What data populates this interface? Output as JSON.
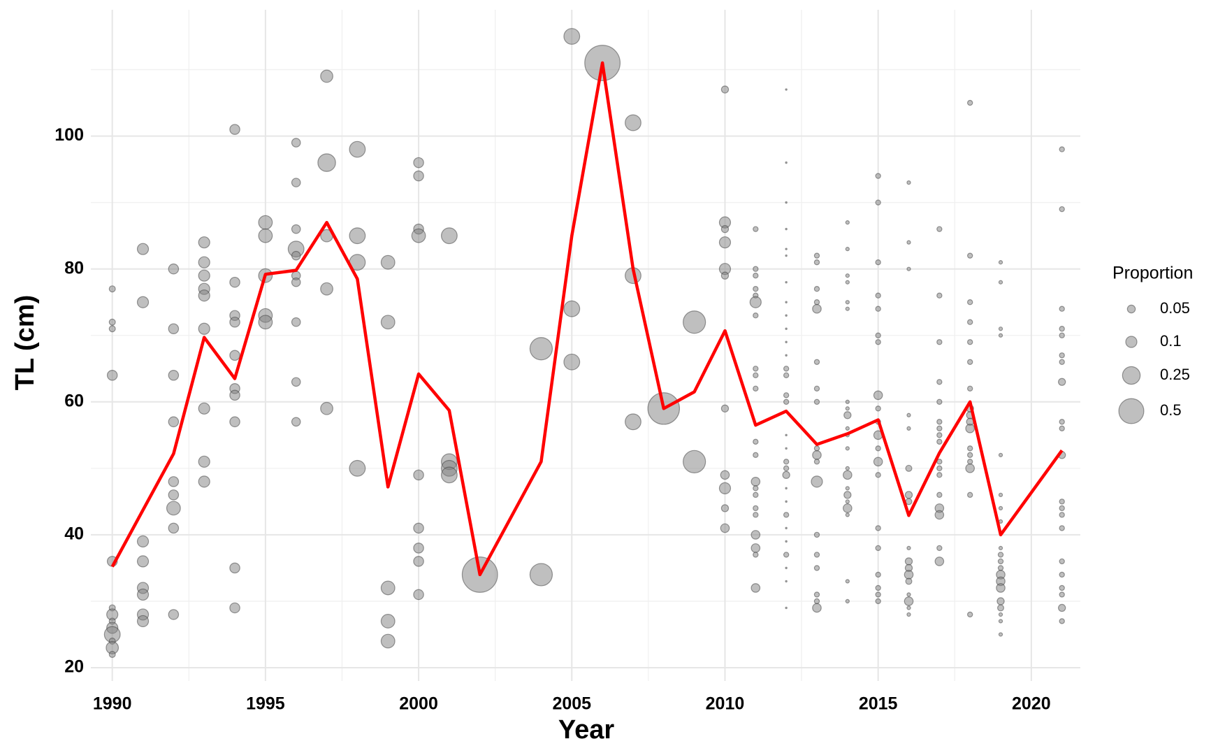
{
  "chart_data": {
    "type": "scatter",
    "x_label": "Year",
    "y_label": "TL (cm)",
    "xlim": [
      1989.3,
      2021.6
    ],
    "ylim": [
      18,
      119
    ],
    "xticks": [
      1990,
      1995,
      2000,
      2005,
      2010,
      2015,
      2020
    ],
    "yticks": [
      20,
      40,
      60,
      80,
      100
    ],
    "xminor": [
      1992.5,
      1997.5,
      2002.5,
      2007.5,
      2012.5,
      2017.5
    ],
    "yminor": [
      30,
      50,
      70,
      90,
      110
    ],
    "grid": true,
    "point_color": "#808080",
    "size_legend": {
      "title": "Proportion",
      "values": [
        0.05,
        0.1,
        0.25,
        0.5
      ]
    },
    "groups": [
      {
        "year": 1990,
        "y": [
          77,
          72,
          71,
          64,
          36,
          29,
          28,
          27,
          26,
          25,
          24,
          23,
          22
        ],
        "size": [
          0.03,
          0.03,
          0.03,
          0.08,
          0.08,
          0.03,
          0.1,
          0.03,
          0.1,
          0.2,
          0.03,
          0.12,
          0.03
        ]
      },
      {
        "year": 1991,
        "y": [
          83,
          75,
          39,
          36,
          32,
          31,
          28,
          27
        ],
        "size": [
          0.1,
          0.1,
          0.1,
          0.1,
          0.1,
          0.1,
          0.1,
          0.1
        ]
      },
      {
        "year": 1992,
        "y": [
          80,
          71,
          64,
          57,
          48,
          46,
          44,
          41,
          28
        ],
        "size": [
          0.08,
          0.08,
          0.08,
          0.08,
          0.08,
          0.08,
          0.15,
          0.08,
          0.08
        ]
      },
      {
        "year": 1993,
        "y": [
          84,
          81,
          79,
          77,
          76,
          71,
          59,
          51,
          48
        ],
        "size": [
          0.1,
          0.1,
          0.1,
          0.1,
          0.1,
          0.1,
          0.1,
          0.1,
          0.1
        ]
      },
      {
        "year": 1994,
        "y": [
          101,
          78,
          73,
          72,
          67,
          62,
          61,
          57,
          35,
          29
        ],
        "size": [
          0.08,
          0.08,
          0.08,
          0.08,
          0.08,
          0.08,
          0.08,
          0.08,
          0.08,
          0.08
        ]
      },
      {
        "year": 1995,
        "y": [
          87,
          85,
          79,
          73,
          72
        ],
        "size": [
          0.15,
          0.15,
          0.15,
          0.15,
          0.15
        ]
      },
      {
        "year": 1996,
        "y": [
          99,
          93,
          86,
          83,
          82,
          79,
          78,
          72,
          63,
          57
        ],
        "size": [
          0.06,
          0.06,
          0.06,
          0.2,
          0.06,
          0.06,
          0.06,
          0.06,
          0.06,
          0.06
        ]
      },
      {
        "year": 1997,
        "y": [
          109,
          96,
          85,
          77,
          59
        ],
        "size": [
          0.12,
          0.25,
          0.12,
          0.12,
          0.12
        ]
      },
      {
        "year": 1998,
        "y": [
          98,
          85,
          81,
          50
        ],
        "size": [
          0.2,
          0.2,
          0.2,
          0.2
        ]
      },
      {
        "year": 1999,
        "y": [
          81,
          72,
          32,
          27,
          24
        ],
        "size": [
          0.15,
          0.15,
          0.15,
          0.15,
          0.15
        ]
      },
      {
        "year": 2000,
        "y": [
          96,
          94,
          86,
          85,
          49,
          41,
          38,
          36,
          31
        ],
        "size": [
          0.08,
          0.08,
          0.08,
          0.15,
          0.08,
          0.08,
          0.08,
          0.08,
          0.08
        ]
      },
      {
        "year": 2001,
        "y": [
          85,
          51,
          50,
          49
        ],
        "size": [
          0.2,
          0.2,
          0.2,
          0.2
        ]
      },
      {
        "year": 2002,
        "y": [
          34
        ],
        "size": [
          1.0
        ]
      },
      {
        "year": 2004,
        "y": [
          68,
          34
        ],
        "size": [
          0.4,
          0.4
        ]
      },
      {
        "year": 2005,
        "y": [
          115,
          74,
          66
        ],
        "size": [
          0.2,
          0.2,
          0.2
        ]
      },
      {
        "year": 2006,
        "y": [
          111
        ],
        "size": [
          1.0
        ]
      },
      {
        "year": 2007,
        "y": [
          102,
          79,
          57
        ],
        "size": [
          0.2,
          0.2,
          0.2
        ]
      },
      {
        "year": 2008,
        "y": [
          59
        ],
        "size": [
          0.8
        ]
      },
      {
        "year": 2009,
        "y": [
          72,
          51
        ],
        "size": [
          0.4,
          0.4
        ]
      },
      {
        "year": 2010,
        "y": [
          107,
          87,
          86,
          84,
          80,
          79,
          59,
          49,
          47,
          44,
          41
        ],
        "size": [
          0.04,
          0.1,
          0.04,
          0.1,
          0.1,
          0.04,
          0.04,
          0.06,
          0.1,
          0.04,
          0.06
        ]
      },
      {
        "year": 2011,
        "y": [
          86,
          80,
          79,
          77,
          76,
          75,
          73,
          65,
          64,
          62,
          54,
          52,
          48,
          47,
          46,
          44,
          43,
          40,
          38,
          37,
          32
        ],
        "size": [
          0.02,
          0.02,
          0.02,
          0.02,
          0.02,
          0.1,
          0.02,
          0.02,
          0.02,
          0.02,
          0.02,
          0.02,
          0.06,
          0.02,
          0.02,
          0.02,
          0.02,
          0.06,
          0.06,
          0.02,
          0.06
        ]
      },
      {
        "year": 2012,
        "y": [
          107,
          96,
          90,
          86,
          83,
          82,
          78,
          75,
          73,
          71,
          69,
          67,
          65,
          64,
          61,
          60,
          55,
          53,
          51,
          50,
          49,
          47,
          45,
          43,
          41,
          39,
          37,
          35,
          33,
          29
        ],
        "size": [
          0.002,
          0.002,
          0.002,
          0.002,
          0.002,
          0.002,
          0.002,
          0.002,
          0.002,
          0.002,
          0.002,
          0.002,
          0.02,
          0.02,
          0.02,
          0.02,
          0.002,
          0.002,
          0.02,
          0.02,
          0.04,
          0.002,
          0.002,
          0.02,
          0.002,
          0.002,
          0.02,
          0.002,
          0.002,
          0.002
        ]
      },
      {
        "year": 2013,
        "y": [
          82,
          81,
          77,
          75,
          74,
          66,
          62,
          60,
          53,
          52,
          51,
          48,
          40,
          37,
          35,
          31,
          30,
          29
        ],
        "size": [
          0.02,
          0.02,
          0.02,
          0.02,
          0.06,
          0.02,
          0.02,
          0.02,
          0.02,
          0.06,
          0.02,
          0.1,
          0.02,
          0.02,
          0.02,
          0.02,
          0.02,
          0.06
        ]
      },
      {
        "year": 2014,
        "y": [
          87,
          83,
          79,
          78,
          75,
          74,
          60,
          59,
          58,
          56,
          55,
          53,
          50,
          49,
          47,
          46,
          45,
          44,
          43,
          33,
          30
        ],
        "size": [
          0.01,
          0.01,
          0.01,
          0.01,
          0.01,
          0.01,
          0.01,
          0.01,
          0.04,
          0.01,
          0.01,
          0.01,
          0.01,
          0.06,
          0.01,
          0.04,
          0.01,
          0.06,
          0.01,
          0.01,
          0.01
        ]
      },
      {
        "year": 2015,
        "y": [
          94,
          90,
          81,
          76,
          74,
          70,
          69,
          61,
          59,
          57,
          55,
          53,
          51,
          49,
          41,
          38,
          34,
          32,
          31,
          30
        ],
        "size": [
          0.02,
          0.02,
          0.02,
          0.02,
          0.02,
          0.02,
          0.02,
          0.06,
          0.02,
          0.02,
          0.06,
          0.02,
          0.06,
          0.02,
          0.02,
          0.02,
          0.02,
          0.02,
          0.02,
          0.02
        ]
      },
      {
        "year": 2016,
        "y": [
          93,
          84,
          80,
          58,
          56,
          50,
          46,
          45,
          38,
          36,
          35,
          34,
          33,
          31,
          30,
          29,
          28
        ],
        "size": [
          0.01,
          0.01,
          0.01,
          0.01,
          0.01,
          0.03,
          0.04,
          0.03,
          0.01,
          0.04,
          0.04,
          0.06,
          0.03,
          0.01,
          0.06,
          0.01,
          0.01
        ]
      },
      {
        "year": 2017,
        "y": [
          86,
          76,
          69,
          63,
          60,
          57,
          56,
          55,
          54,
          51,
          50,
          49,
          46,
          44,
          43,
          38,
          36
        ],
        "size": [
          0.02,
          0.02,
          0.02,
          0.02,
          0.02,
          0.02,
          0.02,
          0.02,
          0.02,
          0.02,
          0.02,
          0.02,
          0.02,
          0.06,
          0.06,
          0.02,
          0.06
        ]
      },
      {
        "year": 2018,
        "y": [
          105,
          82,
          75,
          72,
          69,
          66,
          62,
          59,
          58,
          57,
          56,
          53,
          52,
          51,
          50,
          46,
          28
        ],
        "size": [
          0.02,
          0.02,
          0.02,
          0.02,
          0.02,
          0.02,
          0.02,
          0.04,
          0.04,
          0.04,
          0.06,
          0.02,
          0.02,
          0.02,
          0.06,
          0.02,
          0.02
        ]
      },
      {
        "year": 2019,
        "y": [
          81,
          78,
          71,
          70,
          52,
          46,
          44,
          42,
          38,
          37,
          36,
          35,
          34,
          33,
          32,
          30,
          29,
          28,
          27,
          25
        ],
        "size": [
          0.01,
          0.01,
          0.01,
          0.01,
          0.01,
          0.01,
          0.01,
          0.01,
          0.01,
          0.02,
          0.02,
          0.02,
          0.06,
          0.06,
          0.06,
          0.04,
          0.03,
          0.01,
          0.01,
          0.01
        ]
      },
      {
        "year": 2021,
        "y": [
          98,
          89,
          74,
          71,
          70,
          67,
          66,
          63,
          57,
          56,
          52,
          45,
          44,
          43,
          41,
          36,
          34,
          32,
          31,
          29,
          27
        ],
        "size": [
          0.02,
          0.02,
          0.02,
          0.02,
          0.02,
          0.02,
          0.02,
          0.04,
          0.02,
          0.02,
          0.04,
          0.02,
          0.02,
          0.02,
          0.02,
          0.02,
          0.02,
          0.02,
          0.02,
          0.04,
          0.02
        ]
      }
    ],
    "line": {
      "color": "#ff0000",
      "x": [
        1990,
        1991,
        1992,
        1993,
        1994,
        1995,
        1996,
        1997,
        1998,
        1999,
        2000,
        2001,
        2002,
        2004,
        2005,
        2006,
        2007,
        2008,
        2009,
        2010,
        2011,
        2012,
        2013,
        2014,
        2015,
        2016,
        2017,
        2018,
        2019,
        2021
      ],
      "y": [
        35.2,
        43.7,
        52.2,
        69.7,
        63.5,
        79.2,
        79.8,
        87,
        78.5,
        47.2,
        64.2,
        58.7,
        34,
        51,
        85,
        111,
        80,
        59,
        61.5,
        70.7,
        56.5,
        58.6,
        53.6,
        55.2,
        57.3,
        42.9,
        52.3,
        60,
        40,
        52.7
      ]
    }
  }
}
